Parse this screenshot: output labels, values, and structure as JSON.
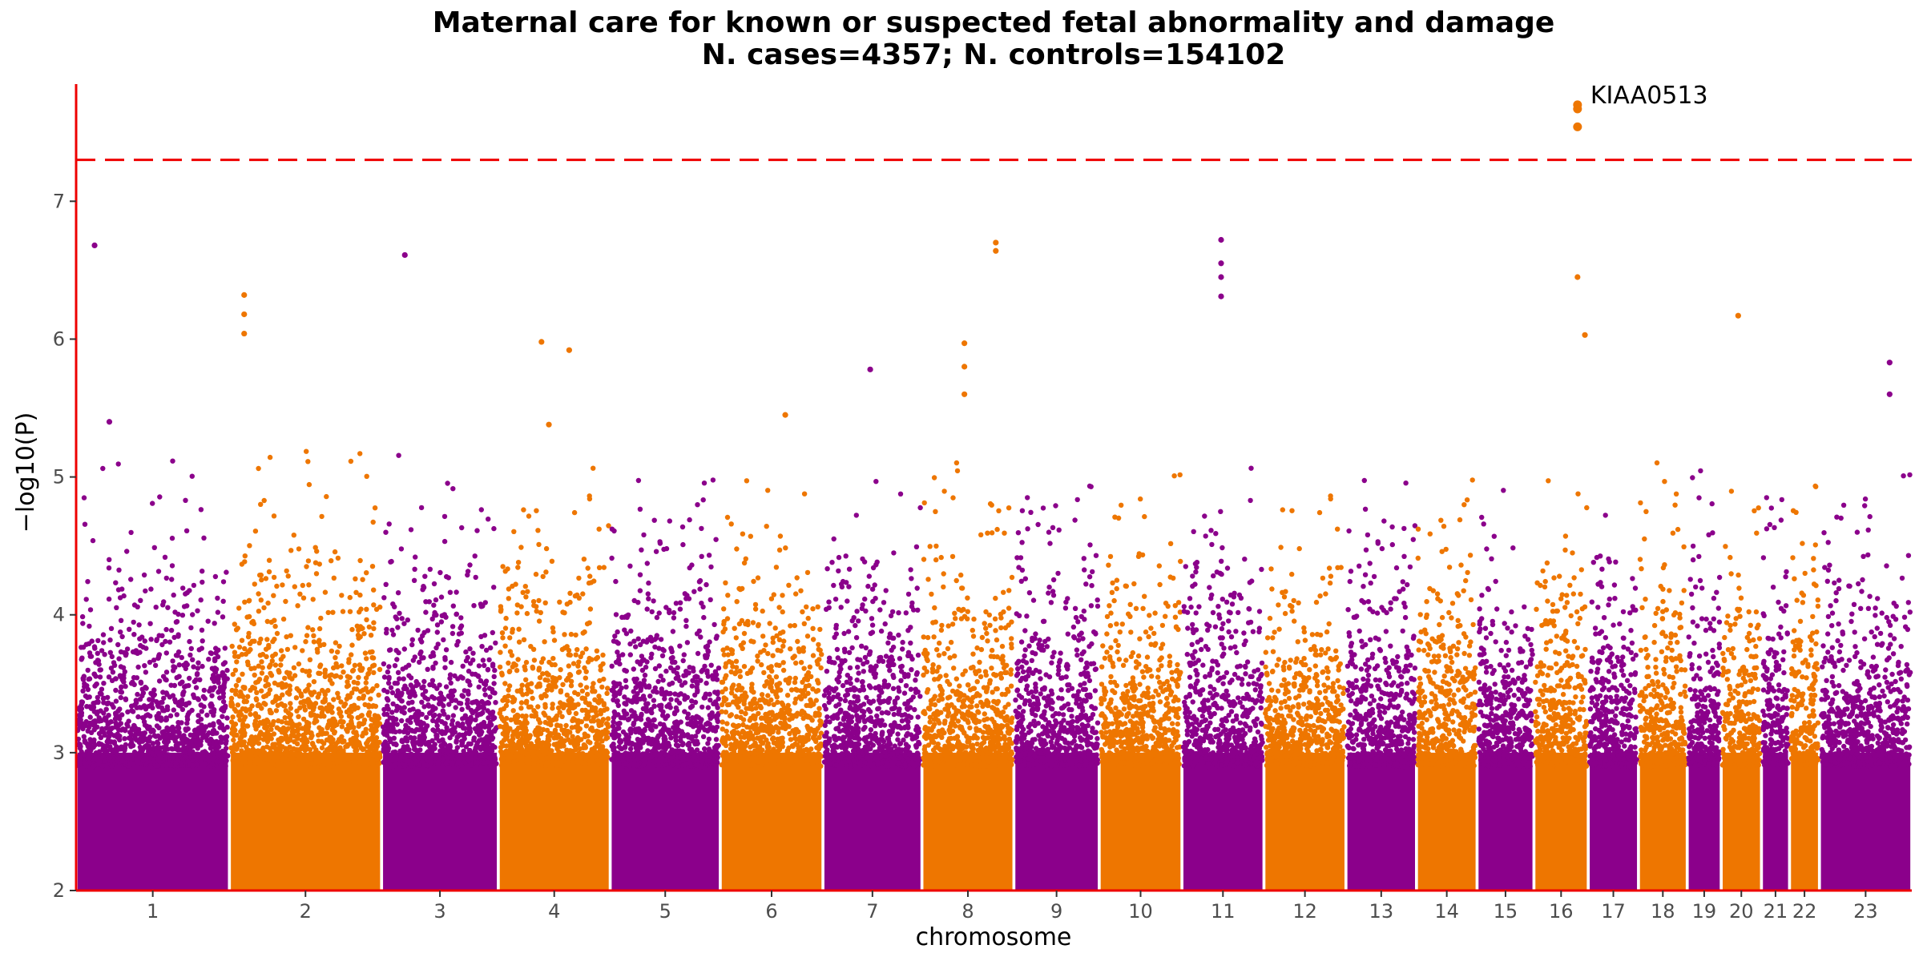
{
  "chart_data": {
    "type": "scatter",
    "title": "Maternal care for known or suspected fetal abnormality and damage",
    "subtitle": "N. cases=4357; N. controls=154102",
    "xlabel": "chromosome",
    "ylabel": "−log10(P)",
    "ylim": [
      2,
      7.85
    ],
    "yticks": [
      2,
      3,
      4,
      5,
      6,
      7
    ],
    "significance_line": 7.3,
    "colors": {
      "odd": "#8B008B",
      "even": "#EE7600",
      "axis": "#EE0000",
      "threshold": "#EE0000"
    },
    "chromosomes": [
      {
        "label": "1",
        "start": 0.0,
        "end": 4.15
      },
      {
        "label": "2",
        "start": 4.15,
        "end": 8.27
      },
      {
        "label": "3",
        "start": 8.27,
        "end": 11.43
      },
      {
        "label": "4",
        "start": 11.43,
        "end": 14.46
      },
      {
        "label": "5",
        "start": 14.46,
        "end": 17.44
      },
      {
        "label": "6",
        "start": 17.44,
        "end": 20.22
      },
      {
        "label": "7",
        "start": 20.22,
        "end": 22.9
      },
      {
        "label": "8",
        "start": 22.9,
        "end": 25.39
      },
      {
        "label": "9",
        "start": 25.39,
        "end": 27.7
      },
      {
        "label": "10",
        "start": 27.7,
        "end": 29.94
      },
      {
        "label": "11",
        "start": 29.94,
        "end": 32.16
      },
      {
        "label": "12",
        "start": 32.16,
        "end": 34.38
      },
      {
        "label": "13",
        "start": 34.38,
        "end": 36.29
      },
      {
        "label": "14",
        "start": 36.29,
        "end": 37.93
      },
      {
        "label": "15",
        "start": 37.93,
        "end": 39.47
      },
      {
        "label": "16",
        "start": 39.47,
        "end": 40.94
      },
      {
        "label": "17",
        "start": 40.94,
        "end": 42.3
      },
      {
        "label": "18",
        "start": 42.3,
        "end": 43.62
      },
      {
        "label": "19",
        "start": 43.62,
        "end": 44.54
      },
      {
        "label": "20",
        "start": 44.54,
        "end": 45.63
      },
      {
        "label": "21",
        "start": 45.63,
        "end": 46.39
      },
      {
        "label": "22",
        "start": 46.39,
        "end": 47.2
      },
      {
        "label": "23",
        "start": 47.2,
        "end": 49.7
      }
    ],
    "peaks": [
      {
        "x": 0.5,
        "y": 6.68
      },
      {
        "x": 0.9,
        "y": 5.4
      },
      {
        "x": 4.55,
        "y": 6.32
      },
      {
        "x": 4.55,
        "y": 6.18
      },
      {
        "x": 4.55,
        "y": 6.04
      },
      {
        "x": 8.9,
        "y": 6.61
      },
      {
        "x": 12.6,
        "y": 5.98
      },
      {
        "x": 13.35,
        "y": 5.92
      },
      {
        "x": 12.8,
        "y": 5.38
      },
      {
        "x": 19.2,
        "y": 5.45
      },
      {
        "x": 21.5,
        "y": 5.78
      },
      {
        "x": 24.05,
        "y": 5.97
      },
      {
        "x": 24.05,
        "y": 5.8
      },
      {
        "x": 24.05,
        "y": 5.6
      },
      {
        "x": 24.9,
        "y": 6.7
      },
      {
        "x": 24.9,
        "y": 6.64
      },
      {
        "x": 31.0,
        "y": 6.72
      },
      {
        "x": 31.0,
        "y": 6.55
      },
      {
        "x": 31.0,
        "y": 6.45
      },
      {
        "x": 31.0,
        "y": 6.31
      },
      {
        "x": 40.65,
        "y": 6.45
      },
      {
        "x": 40.85,
        "y": 6.03
      },
      {
        "x": 45.0,
        "y": 6.17
      },
      {
        "x": 49.1,
        "y": 5.83
      },
      {
        "x": 49.1,
        "y": 5.6
      }
    ],
    "top_hits": [
      {
        "x": 40.65,
        "y": 7.7
      },
      {
        "x": 40.65,
        "y": 7.67
      },
      {
        "x": 40.65,
        "y": 7.54
      }
    ],
    "annotations": [
      {
        "text": "KIAA0513",
        "x": 40.65,
        "y": 7.7
      }
    ]
  }
}
